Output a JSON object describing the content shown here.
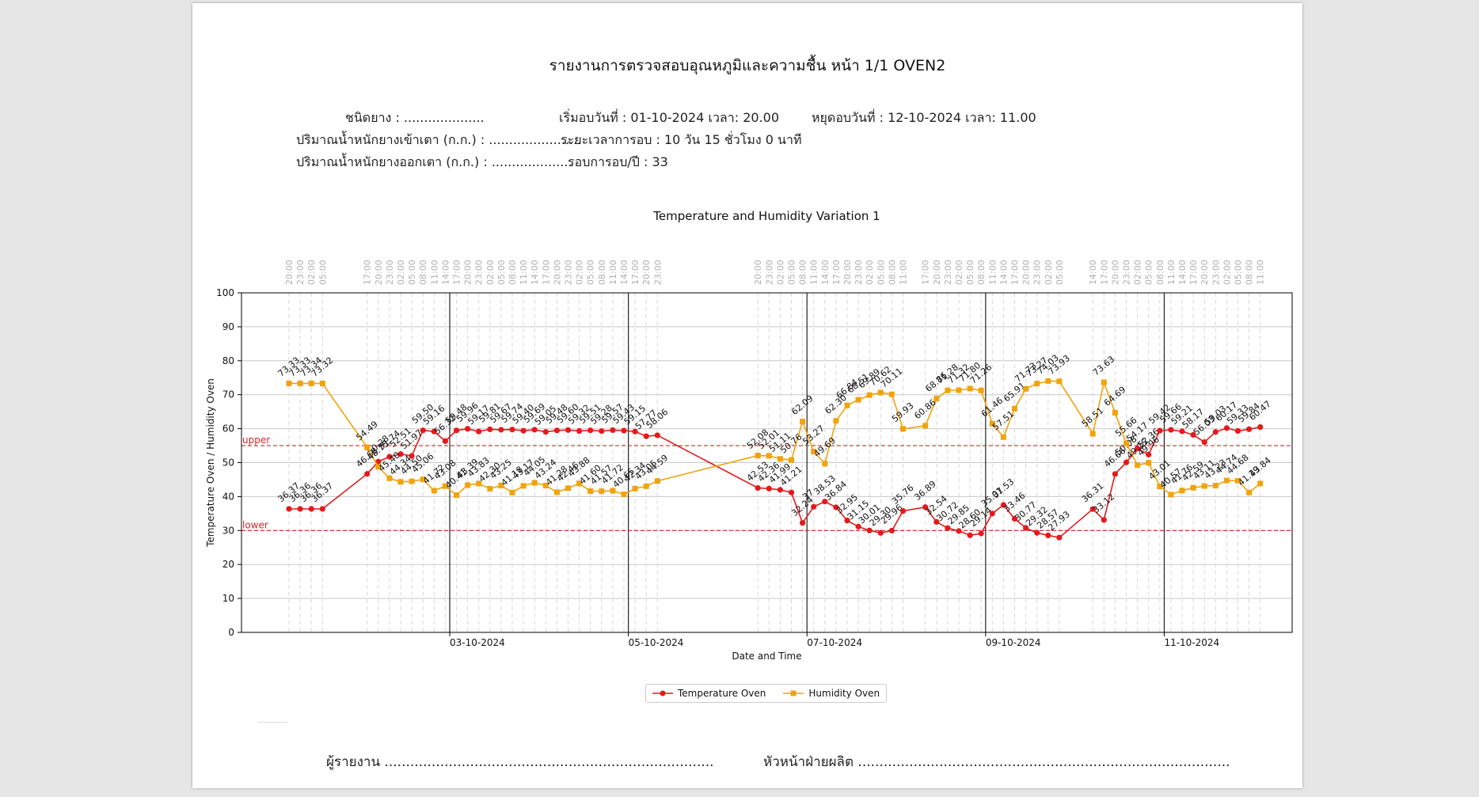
{
  "report": {
    "title": "รายงานการตรวจสอบอุณหภูมิและความชื้น หน้า 1/1  OVEN2",
    "rubber_type": "ชนิดยาง : ....................",
    "start_date": "เริ่มอบวันที่ : 01-10-2024  เวลา: 20.00",
    "stop_date": "หยุดอบวันที่ : 12-10-2024  เวลา: 11.00",
    "weight_in": "ปริมาณน้ำหนักยางเข้าเตา (ก.ก.) : .......................",
    "duration": "ระยะเวลาการอบ : 10 วัน 15 ชั่วโมง 0 นาที",
    "weight_out": "ปริมาณน้ำหนักยางออกเตา (ก.ก.) : ....................",
    "round": "รอบการอบ/ปี : 33",
    "reporter": "ผู้รายงาน .............................................................................",
    "head": "หัวหน้าฝ่ายผลิต .......................................................................................",
    "tiny_note": "........................"
  },
  "chart_data": {
    "type": "line",
    "title": "Temperature and Humidity Variation 1",
    "xlabel": "Date and Time",
    "ylabel": "Temperature Oven / Humidity Oven",
    "ylim": [
      0,
      100
    ],
    "yticks": [
      0,
      10,
      20,
      30,
      40,
      50,
      60,
      70,
      80,
      90,
      100
    ],
    "grid": true,
    "legend_position": "bottom-center",
    "x_start": "01-10-2024 20:00",
    "step_hours": 3,
    "date_ticks": [
      "03-10-2024",
      "05-10-2024",
      "07-10-2024",
      "09-10-2024",
      "11-10-2024"
    ],
    "top_time_labels": [
      "20:00",
      "23:00",
      "02:00",
      "05:00",
      null,
      null,
      null,
      "17:00",
      "20:00",
      "23:00",
      "02:00",
      "05:00",
      "08:00",
      "11:00",
      "14:00",
      "17:00",
      "20:00",
      "23:00",
      "02:00",
      "05:00",
      "08:00",
      "11:00",
      "14:00",
      "17:00",
      "20:00",
      "23:00",
      "02:00",
      "05:00",
      "08:00",
      "11:00",
      "14:00",
      "17:00",
      "20:00",
      "23:00",
      null,
      null,
      null,
      null,
      null,
      null,
      null,
      null,
      "20:00",
      "23:00",
      "02:00",
      "05:00",
      "08:00",
      "11:00",
      "14:00",
      "17:00",
      "20:00",
      "23:00",
      "02:00",
      "05:00",
      "08:00",
      "11:00",
      null,
      "17:00",
      "20:00",
      "23:00",
      "02:00",
      "05:00",
      "08:00",
      "11:00",
      "14:00",
      "17:00",
      "20:00",
      "23:00",
      "02:00",
      "05:00",
      null,
      null,
      "14:00",
      "17:00",
      "20:00",
      "23:00",
      "02:00",
      "05:00",
      "08:00",
      "11:00",
      "14:00",
      "17:00",
      "20:00",
      "23:00",
      "02:00",
      "05:00",
      "08:00",
      "11:00"
    ],
    "reference_lines": [
      {
        "label": "upper",
        "value": 55,
        "color": "#d62728"
      },
      {
        "label": "lower",
        "value": 30,
        "color": "#d62728"
      }
    ],
    "series": [
      {
        "name": "Temperature Oven",
        "color": "#e31a1c",
        "marker": "circle",
        "values": [
          36.37,
          36.36,
          36.36,
          36.37,
          null,
          null,
          null,
          46.68,
          50.28,
          51.74,
          52.51,
          51.97,
          59.5,
          59.16,
          56.32,
          59.48,
          59.96,
          59.17,
          59.81,
          59.67,
          59.74,
          59.4,
          59.69,
          59.05,
          59.48,
          59.6,
          59.32,
          59.51,
          59.28,
          59.57,
          59.43,
          59.15,
          57.77,
          58.06,
          null,
          null,
          null,
          null,
          null,
          null,
          null,
          null,
          42.53,
          42.36,
          41.99,
          41.21,
          32.24,
          37.0,
          38.53,
          36.84,
          32.95,
          31.15,
          30.01,
          29.3,
          29.96,
          35.76,
          null,
          36.89,
          32.54,
          30.72,
          29.85,
          28.6,
          29.14,
          35.01,
          37.53,
          33.46,
          30.77,
          29.32,
          28.57,
          27.93,
          null,
          null,
          36.31,
          33.12,
          46.66,
          50.08,
          54.17,
          52.36,
          59.42,
          59.66,
          59.21,
          58.17,
          56.03,
          59.03,
          60.17,
          59.33,
          59.84,
          60.47
        ]
      },
      {
        "name": "Humidity Oven",
        "color": "#f0a30a",
        "marker": "square",
        "values": [
          73.33,
          73.33,
          73.34,
          73.32,
          null,
          null,
          null,
          54.49,
          48.75,
          45.4,
          44.34,
          44.5,
          45.06,
          41.72,
          43.08,
          40.41,
          43.39,
          43.83,
          42.3,
          43.25,
          41.18,
          43.17,
          44.05,
          43.24,
          41.28,
          42.46,
          43.88,
          41.6,
          41.57,
          41.72,
          40.65,
          42.34,
          43.05,
          44.59,
          null,
          null,
          null,
          null,
          null,
          null,
          null,
          null,
          52.08,
          52.01,
          51.11,
          50.76,
          62.09,
          53.27,
          49.69,
          62.3,
          66.84,
          68.51,
          69.89,
          70.62,
          70.11,
          59.93,
          null,
          60.86,
          68.86,
          71.28,
          71.32,
          71.8,
          71.26,
          61.46,
          57.51,
          65.91,
          71.73,
          73.27,
          74.03,
          73.93,
          null,
          null,
          58.51,
          73.63,
          64.69,
          55.66,
          49.25,
          49.96,
          43.01,
          40.57,
          41.76,
          42.59,
          43.11,
          43.23,
          44.74,
          44.68,
          41.19,
          43.84
        ]
      }
    ]
  }
}
